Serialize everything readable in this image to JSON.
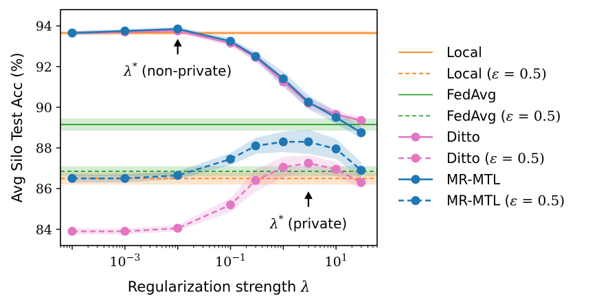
{
  "chart_data": {
    "type": "line",
    "title": "",
    "xlabel": "Regularization strength λ",
    "ylabel": "Avg Silo Test Acc (%)",
    "xscale": "log",
    "xlim": [
      6e-05,
      60
    ],
    "ylim": [
      83.2,
      94.8
    ],
    "x_ticks": [
      0.001,
      0.1,
      10
    ],
    "x_tick_labels": [
      {
        "base": "10",
        "exp": "−3"
      },
      {
        "base": "10",
        "exp": "−1"
      },
      {
        "base": "10",
        "exp": "1"
      }
    ],
    "y_ticks": [
      84,
      86,
      88,
      90,
      92,
      94
    ],
    "y_tick_labels": [
      "84",
      "86",
      "88",
      "90",
      "92",
      "94"
    ],
    "x": [
      0.0001,
      0.001,
      0.01,
      0.1,
      0.3,
      1,
      3,
      10,
      30
    ],
    "horizontal_series": [
      {
        "name": "Local",
        "eps": "",
        "value": 93.65,
        "band": 0.1,
        "color": "#ff7f0e",
        "dashed": false
      },
      {
        "name": "Local",
        "eps": "(ε = 0.5)",
        "value": 86.5,
        "band": 0.3,
        "color": "#ff7f0e",
        "dashed": true
      },
      {
        "name": "FedAvg",
        "eps": "",
        "value": 89.15,
        "band": 0.3,
        "color": "#2ca02c",
        "dashed": false
      },
      {
        "name": "FedAvg",
        "eps": "(ε = 0.5)",
        "value": 86.85,
        "band": 0.25,
        "color": "#2ca02c",
        "dashed": true
      }
    ],
    "series": [
      {
        "name": "Ditto",
        "eps": "",
        "color": "#e377c2",
        "dashed": false,
        "values": [
          93.65,
          93.7,
          93.75,
          93.15,
          92.45,
          91.25,
          90.2,
          89.65,
          89.35
        ],
        "band": [
          0.1,
          0.1,
          0.1,
          0.15,
          0.2,
          0.25,
          0.25,
          0.2,
          0.15
        ]
      },
      {
        "name": "Ditto",
        "eps": "(ε = 0.5)",
        "color": "#e377c2",
        "dashed": true,
        "values": [
          83.9,
          83.9,
          84.05,
          85.2,
          86.4,
          87.05,
          87.25,
          86.95,
          86.3
        ],
        "band": [
          0.15,
          0.15,
          0.15,
          0.35,
          0.55,
          0.5,
          0.4,
          0.35,
          0.3
        ]
      },
      {
        "name": "MR-MTL",
        "eps": "",
        "color": "#1f77b4",
        "dashed": false,
        "values": [
          93.65,
          93.75,
          93.85,
          93.25,
          92.5,
          91.4,
          90.25,
          89.5,
          88.75
        ],
        "band": [
          0.1,
          0.1,
          0.1,
          0.15,
          0.2,
          0.35,
          0.35,
          0.3,
          0.3
        ]
      },
      {
        "name": "MR-MTL",
        "eps": "(ε = 0.5)",
        "color": "#1f77b4",
        "dashed": true,
        "values": [
          86.5,
          86.5,
          86.65,
          87.45,
          88.1,
          88.3,
          88.3,
          87.95,
          86.9
        ],
        "band": [
          0.2,
          0.2,
          0.2,
          0.3,
          0.4,
          0.5,
          0.6,
          0.5,
          0.4
        ]
      }
    ],
    "annotations": [
      {
        "symbol": "λ",
        "sup": "*",
        "label": "(non-private)",
        "x": 0.01,
        "tip_y": 93.7,
        "tail_y": 92.6
      },
      {
        "symbol": "λ",
        "sup": "*",
        "label": "(private)",
        "x": 3,
        "tip_y": 86.2,
        "tail_y": 85.1
      }
    ],
    "legend_position": "right outside",
    "grid": false
  }
}
